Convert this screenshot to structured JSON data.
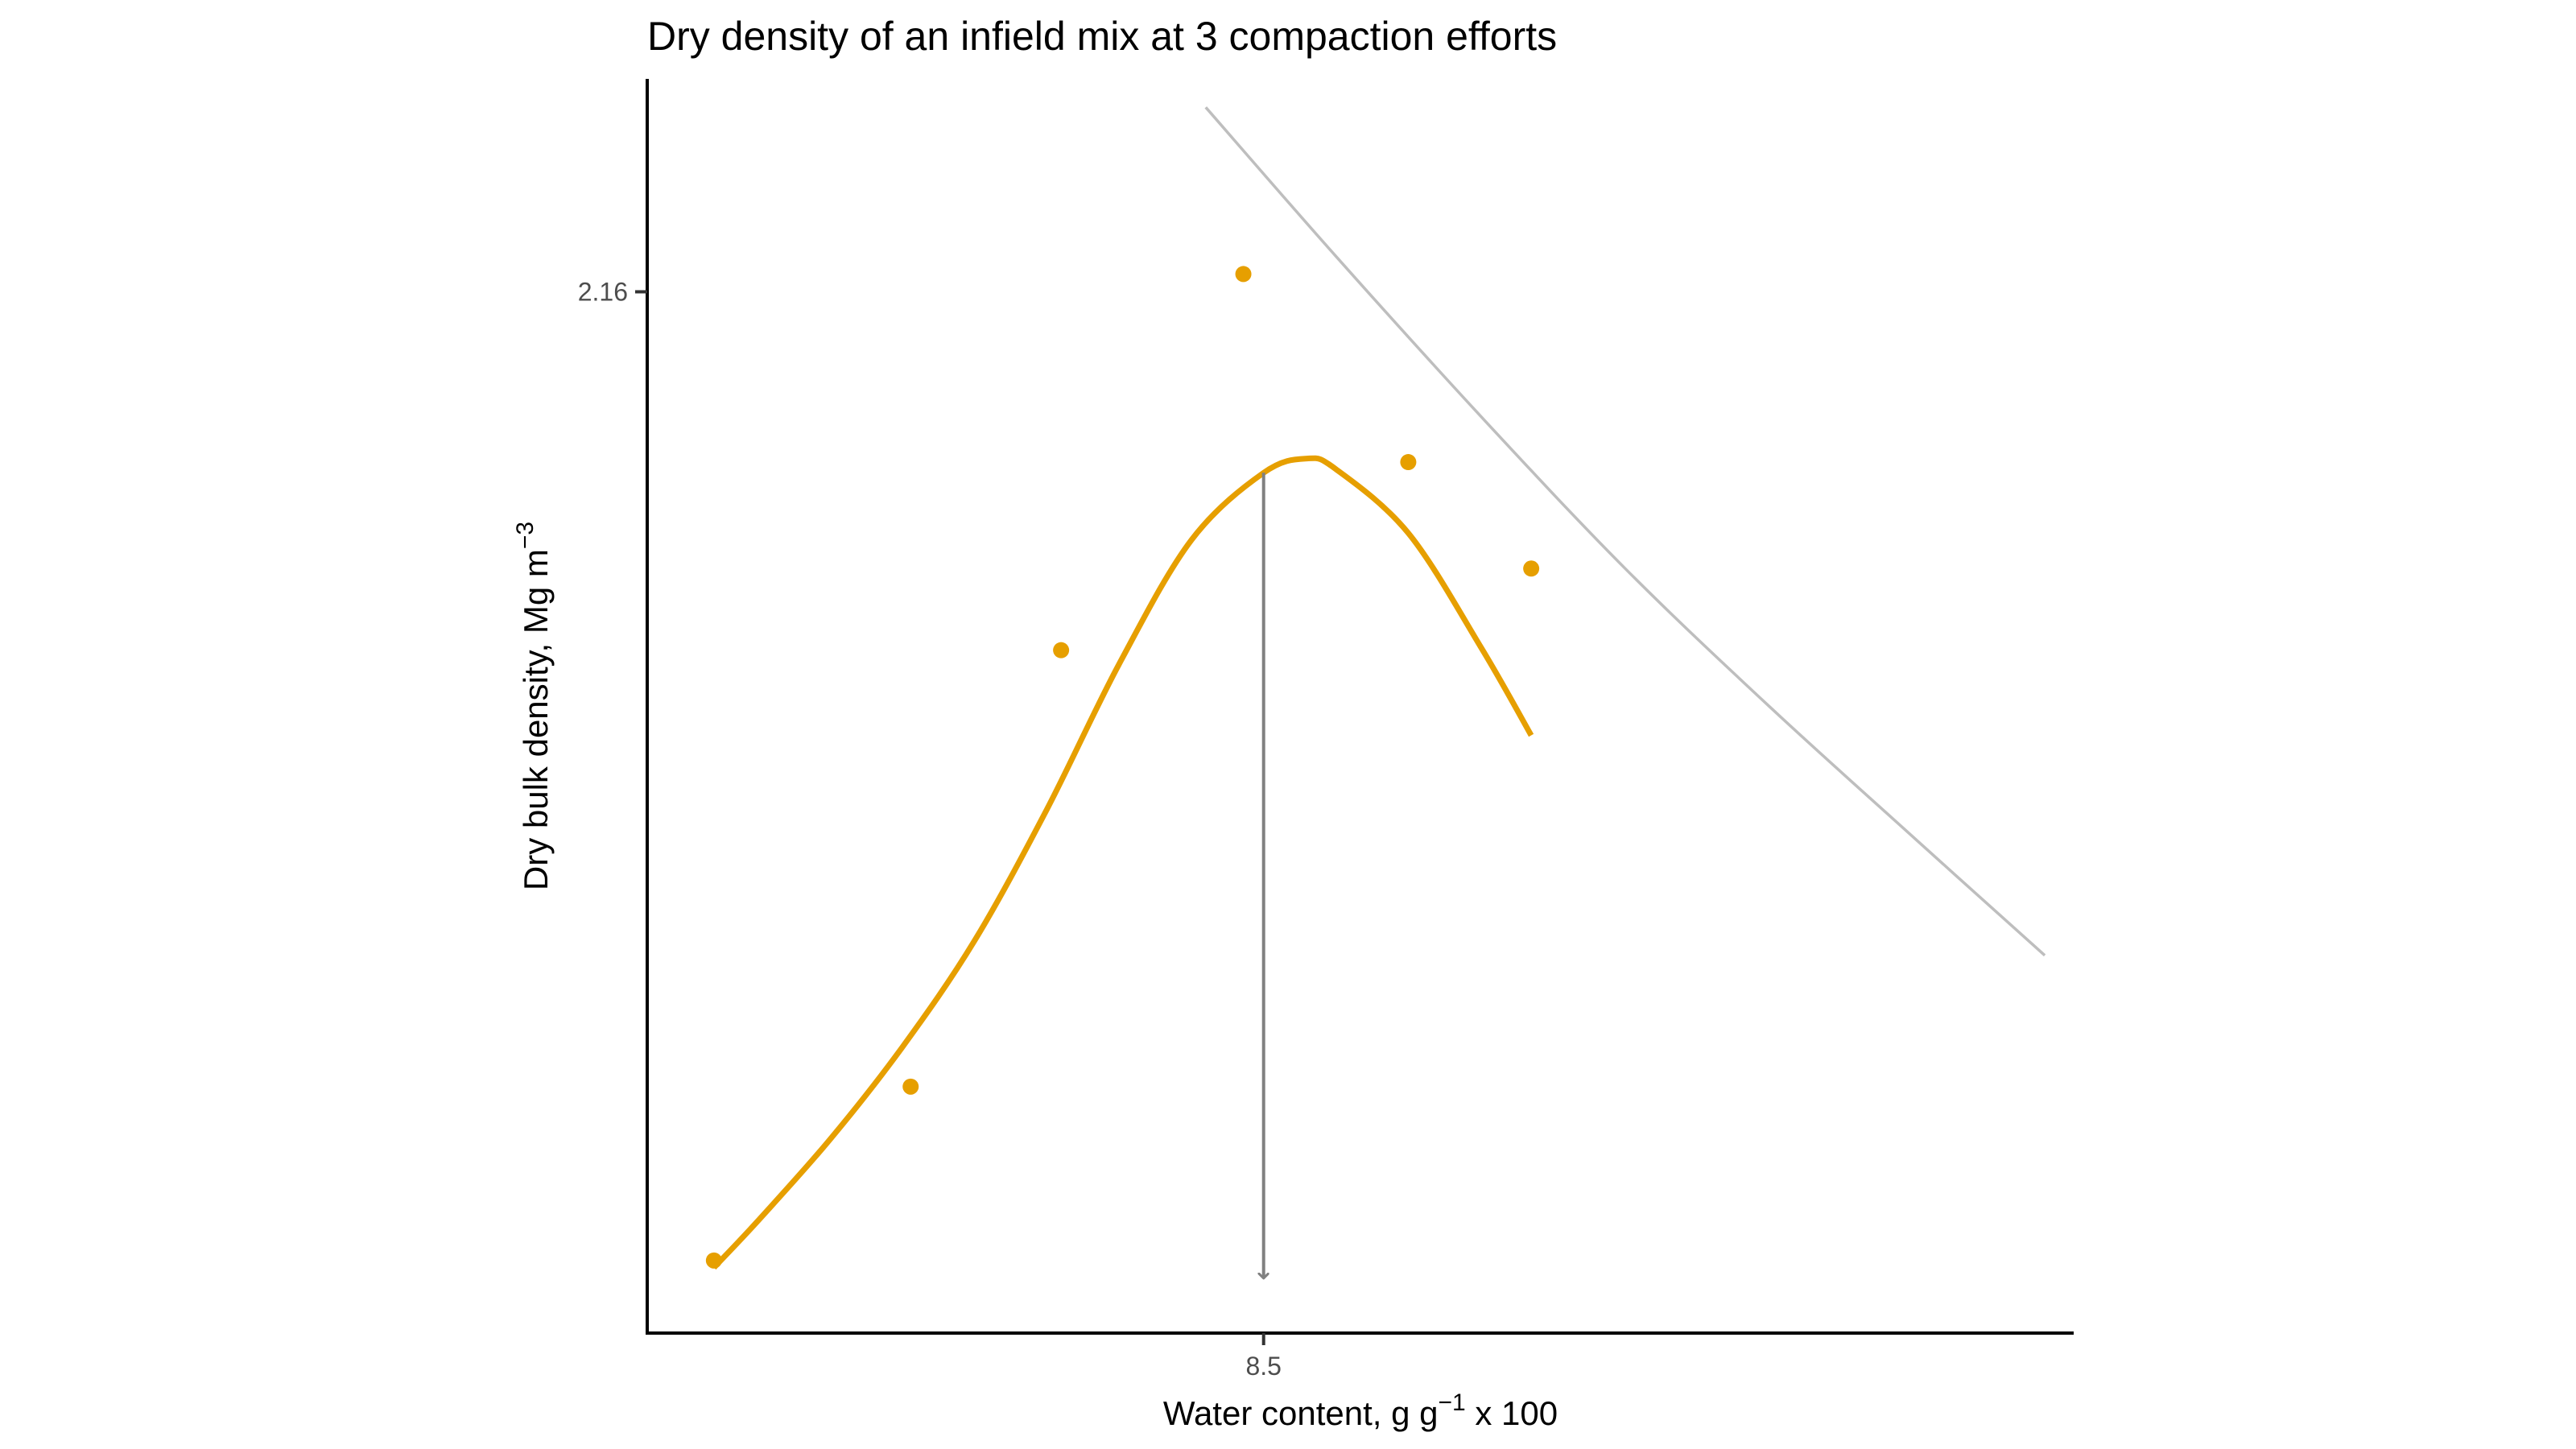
{
  "chart_data": {
    "type": "scatter",
    "title": "Dry density of an infield mix at 3 compaction efforts",
    "xlabel": {
      "base": "Water content, g g",
      "superscript": "−1",
      "suffix": " x 100"
    },
    "ylabel": {
      "base": "Dry bulk density, Mg m",
      "superscript": "−3"
    },
    "x_ticks": [
      8.5
    ],
    "x_tick_labels": [
      "8.5"
    ],
    "y_ticks": [
      2.16
    ],
    "y_tick_labels": [
      "2.16"
    ],
    "xlim": [
      4.25,
      14.1
    ],
    "ylim": [
      1.867,
      2.22
    ],
    "grid": false,
    "legend": "none",
    "series": [
      {
        "kind": "points",
        "color": "#E69F00",
        "x": [
          4.7,
          6.06,
          7.1,
          8.36,
          9.5,
          10.35
        ],
        "y": [
          1.887,
          1.936,
          2.059,
          2.165,
          2.112,
          2.082
        ]
      },
      {
        "kind": "smooth-fit-line",
        "color": "#E69F00",
        "x": [
          4.7,
          5.0,
          5.5,
          6.0,
          6.5,
          7.0,
          7.5,
          8.0,
          8.5,
          8.8,
          9.0,
          9.5,
          10.0,
          10.35
        ],
        "y": [
          1.885,
          1.898,
          1.921,
          1.947,
          1.977,
          2.014,
          2.055,
          2.09,
          2.109,
          2.113,
          2.11,
          2.092,
          2.06,
          2.035
        ]
      },
      {
        "kind": "zero-air-voids-line",
        "color": "#BEBEBE",
        "x": [
          8.1,
          9.0,
          10.0,
          11.0,
          12.0,
          13.0,
          13.9
        ],
        "y": [
          2.212,
          2.17,
          2.125,
          2.082,
          2.043,
          2.006,
          1.973
        ]
      }
    ],
    "annotations": [
      {
        "type": "arrow",
        "color": "#808080",
        "x": 8.5,
        "y_start": 2.109,
        "y_end": 1.882
      }
    ]
  }
}
